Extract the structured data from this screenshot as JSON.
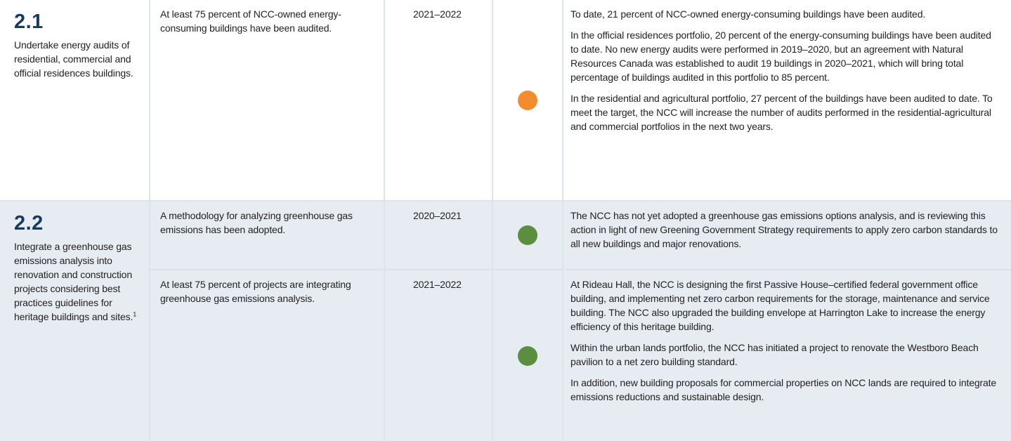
{
  "table": {
    "rows": [
      {
        "number": "2.1",
        "action": "Undertake energy audits of residential, commercial and official residences buildings.",
        "targets": [
          {
            "indicator": "At least 75 percent of NCC-owned energy-consuming buildings have been audited.",
            "year": "2021–2022",
            "status_color": "#f28c2e",
            "progress": [
              "To date, 21 percent of NCC-owned energy-consuming buildings have been audited.",
              "In the official residences portfolio, 20 percent of the energy-consuming buildings have been audited to date. No new energy audits were performed in 2019–2020, but an agreement with Natural Resources Canada was established to audit 19 buildings in 2020–2021, which will bring total percentage of buildings audited in this portfolio to 85 percent.",
              "In the residential and agricultural portfolio, 27 percent of the buildings have been audited to date. To meet the target, the NCC will increase the number of audits performed in the residential-agricultural and commercial portfolios in the next two years."
            ]
          }
        ]
      },
      {
        "number": "2.2",
        "action": "Integrate a greenhouse gas emissions analysis into renovation and construction projects considering best practices guidelines for heritage buildings and sites.",
        "footnote": "1",
        "targets": [
          {
            "indicator": "A methodology for analyzing greenhouse gas emissions has been adopted.",
            "year": "2020–2021",
            "status_color": "#5b8f3f",
            "progress": [
              "The NCC has not yet adopted a greenhouse gas emissions options analysis, and is reviewing this action in light of new Greening Government Strategy requirements to apply zero carbon standards to all new buildings and major renovations."
            ]
          },
          {
            "indicator": "At least 75 percent of projects are integrating greenhouse gas emissions analysis.",
            "year": "2021–2022",
            "status_color": "#5b8f3f",
            "progress": [
              "At Rideau Hall, the NCC is designing the first Passive House–certified federal government office building, and implementing net zero carbon requirements for the storage, maintenance and service building. The NCC also upgraded the building envelope at Harrington Lake to increase the energy efficiency of this heritage building.",
              "Within the urban lands portfolio, the NCC has initiated a project to renovate the Westboro Beach pavilion to a net zero building standard.",
              "In addition, new building proposals for commercial properties on NCC lands are required to integrate emissions reductions and sustainable design."
            ]
          }
        ]
      }
    ]
  }
}
